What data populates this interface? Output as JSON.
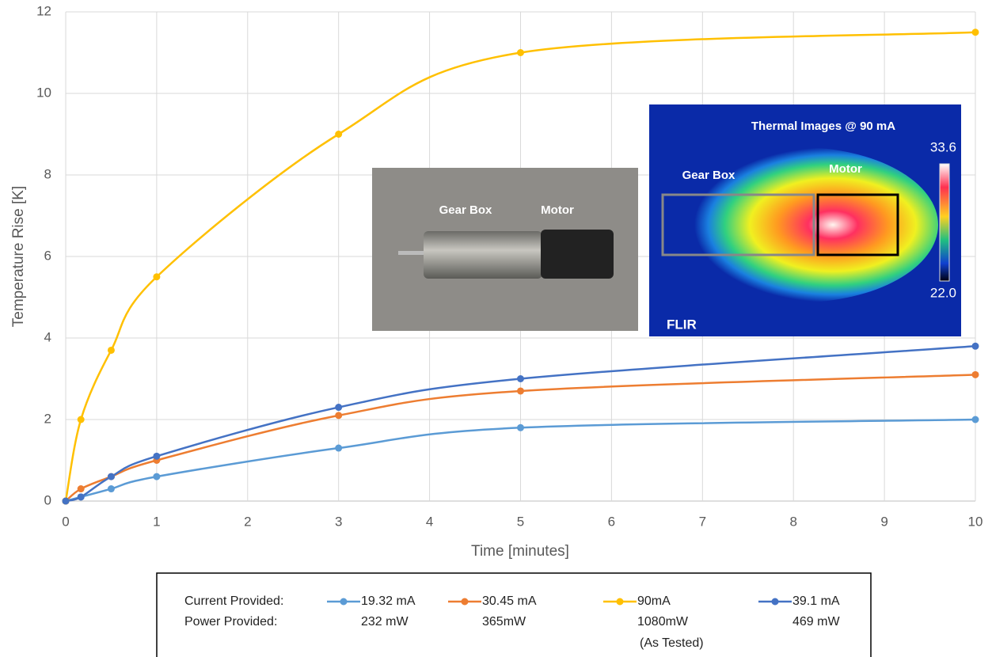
{
  "chart_data": {
    "type": "line",
    "x_label": "Time [minutes]",
    "y_label": "Temperature Rise [K]",
    "x": [
      0,
      0.167,
      0.5,
      1,
      3,
      5,
      10
    ],
    "xlim": [
      0,
      10
    ],
    "xticks": [
      0,
      1,
      2,
      3,
      4,
      5,
      6,
      7,
      8,
      9,
      10
    ],
    "ylim": [
      0,
      12
    ],
    "yticks": [
      0,
      2,
      4,
      6,
      8,
      10,
      12
    ],
    "grid": true,
    "smooth": true,
    "series": [
      {
        "name": "19.32 mA",
        "color": "#5b9bd5",
        "values": [
          0,
          0.1,
          0.3,
          0.6,
          1.3,
          1.8,
          2.0
        ]
      },
      {
        "name": "30.45 mA",
        "color": "#ed7d31",
        "values": [
          0,
          0.3,
          0.6,
          1.0,
          2.1,
          2.7,
          3.1
        ]
      },
      {
        "name": "90mA",
        "color": "#ffc000",
        "values": [
          0,
          2.0,
          3.7,
          5.5,
          9.0,
          11.0,
          11.5
        ]
      },
      {
        "name": "39.1 mA",
        "color": "#4472c4",
        "values": [
          0,
          0.1,
          0.6,
          1.1,
          2.3,
          3.0,
          3.8
        ]
      }
    ],
    "legend": {
      "row_labels": [
        "Current Provided:",
        "Power Provided:"
      ],
      "power": [
        "232 mW",
        "365mW",
        "1080mW",
        "469 mW"
      ],
      "note": "(As Tested)"
    },
    "insets": {
      "photo": {
        "left_label": "Gear Box",
        "right_label": "Motor"
      },
      "thermal": {
        "title": "Thermal Images @ 90 mA",
        "left_label": "Gear Box",
        "right_label": "Motor",
        "scale_max": "33.6",
        "scale_min": "22.0",
        "brand": "FLIR"
      }
    }
  }
}
